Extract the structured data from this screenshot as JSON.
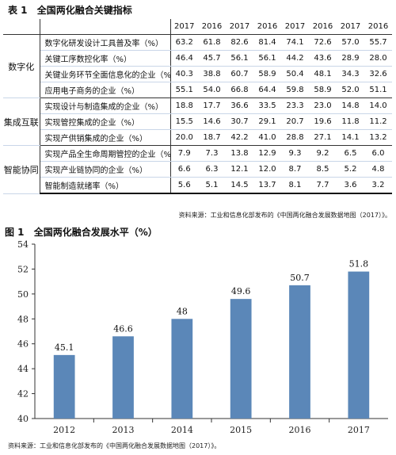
{
  "table": {
    "caption_number": "表 1",
    "caption_title": "全国两化融合关键指标",
    "years": [
      "2017",
      "2016",
      "2017",
      "2016",
      "2017",
      "2016",
      "2017",
      "2016"
    ],
    "groups": [
      {
        "category": "数字化",
        "rows": [
          {
            "label": "数字化研发设计工具普及率（%）",
            "values": [
              "63.2",
              "61.8",
              "82.6",
              "81.4",
              "74.1",
              "72.6",
              "57.0",
              "55.7"
            ]
          },
          {
            "label": "关键工序数控化率（%）",
            "values": [
              "46.4",
              "45.7",
              "56.1",
              "56.1",
              "44.2",
              "43.6",
              "28.9",
              "28.0"
            ]
          },
          {
            "label": "关键业务环节全面信息化的企业（%）",
            "values": [
              "40.3",
              "38.8",
              "60.7",
              "58.9",
              "50.4",
              "48.1",
              "34.3",
              "32.6"
            ]
          },
          {
            "label": "应用电子商务的企业（%）",
            "values": [
              "55.1",
              "54.0",
              "66.8",
              "64.4",
              "59.8",
              "58.9",
              "52.0",
              "51.1"
            ]
          }
        ]
      },
      {
        "category": "集成互联",
        "rows": [
          {
            "label": "实现设计与制造集成的企业（%）",
            "values": [
              "18.8",
              "17.7",
              "36.6",
              "33.5",
              "23.3",
              "23.0",
              "14.8",
              "14.0"
            ]
          },
          {
            "label": "实现管控集成的企业（%）",
            "values": [
              "15.5",
              "14.6",
              "30.7",
              "29.1",
              "20.7",
              "19.6",
              "11.8",
              "11.2"
            ]
          },
          {
            "label": "实现产供销集成的企业（%）",
            "values": [
              "20.0",
              "18.7",
              "42.2",
              "41.0",
              "28.8",
              "27.1",
              "14.1",
              "13.2"
            ]
          }
        ]
      },
      {
        "category": "智能协同",
        "rows": [
          {
            "label": "实现产品全生命周期管控的企业（%）",
            "values": [
              "7.9",
              "7.3",
              "13.8",
              "12.9",
              "9.3",
              "9.2",
              "6.5",
              "6.0"
            ]
          },
          {
            "label": "实现产业链协同的企业（%）",
            "values": [
              "6.6",
              "6.3",
              "12.1",
              "12.0",
              "8.7",
              "8.5",
              "5.2",
              "4.8"
            ]
          },
          {
            "label": "智能制造就绪率（%）",
            "values": [
              "5.6",
              "5.1",
              "14.5",
              "13.7",
              "8.1",
              "7.7",
              "3.6",
              "3.2"
            ]
          }
        ]
      }
    ],
    "source": "资料来源：工业和信息化部发布的《中国两化融合发展数据地图（2017）》。"
  },
  "chart": {
    "caption_number": "图 1",
    "caption_title": "全国两化融合发展水平（%）",
    "source": "资料来源：工业和信息化部发布的《中国两化融合发展数据地图（2017）》。",
    "bar_color": "#5b87b8"
  },
  "chart_data": {
    "type": "bar",
    "title": "全国两化融合发展水平（%）",
    "categories": [
      "2012",
      "2013",
      "2014",
      "2015",
      "2016",
      "2017"
    ],
    "values": [
      45.1,
      46.6,
      48,
      49.6,
      50.7,
      51.8
    ],
    "data_labels": [
      "45.1",
      "46.6",
      "48",
      "49.6",
      "50.7",
      "51.8"
    ],
    "ylim": [
      40,
      54
    ],
    "yticks": [
      40,
      42,
      44,
      46,
      48,
      50,
      52,
      54
    ],
    "grid": false
  }
}
